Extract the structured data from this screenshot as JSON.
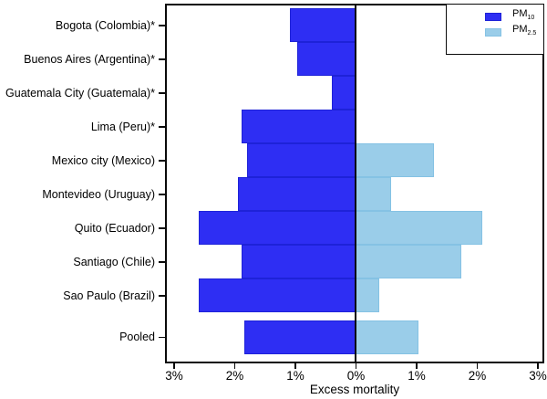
{
  "chart_data": {
    "type": "bar",
    "variant": "diverging-horizontal (population-pyramid style)",
    "title": "",
    "xlabel": "Excess mortality",
    "ylabel": "",
    "x_ticks": [
      "3%",
      "2%",
      "1%",
      "0%",
      "1%",
      "2%",
      "3%"
    ],
    "x_tick_values": [
      -3,
      -2,
      -1,
      0,
      1,
      2,
      3
    ],
    "xlim": [
      -3.15,
      3.1
    ],
    "grid": false,
    "legend_position": "top-right",
    "categories": [
      "Bogota (Colombia)*",
      "Buenos Aires (Argentina)*",
      "Guatemala City (Guatemala)*",
      "Lima (Peru)*",
      "Mexico city (Mexico)",
      "Montevideo (Uruguay)",
      "Quito (Ecuador)",
      "Santiago (Chile)",
      "Sao Paulo (Brazil)",
      "Pooled"
    ],
    "series": [
      {
        "name": "PM10",
        "label_base": "PM",
        "label_sub": "10",
        "direction": "left",
        "color": "#2e2ef3",
        "border_color": "#1e22d8",
        "values_pct": [
          1.1,
          0.98,
          0.4,
          1.9,
          1.8,
          1.95,
          2.6,
          1.9,
          2.6,
          1.85
        ]
      },
      {
        "name": "PM2.5",
        "label_base": "PM",
        "label_sub": "2.5",
        "direction": "right",
        "color": "#9acde9",
        "border_color": "#85c2e4",
        "values_pct": [
          null,
          null,
          null,
          null,
          1.3,
          0.6,
          2.1,
          1.75,
          0.4,
          1.05
        ]
      }
    ]
  },
  "colors": {
    "axis": "#0a0a0a",
    "background": "#ffffff",
    "pm10": "#2e2ef3",
    "pm25": "#9acde9"
  }
}
